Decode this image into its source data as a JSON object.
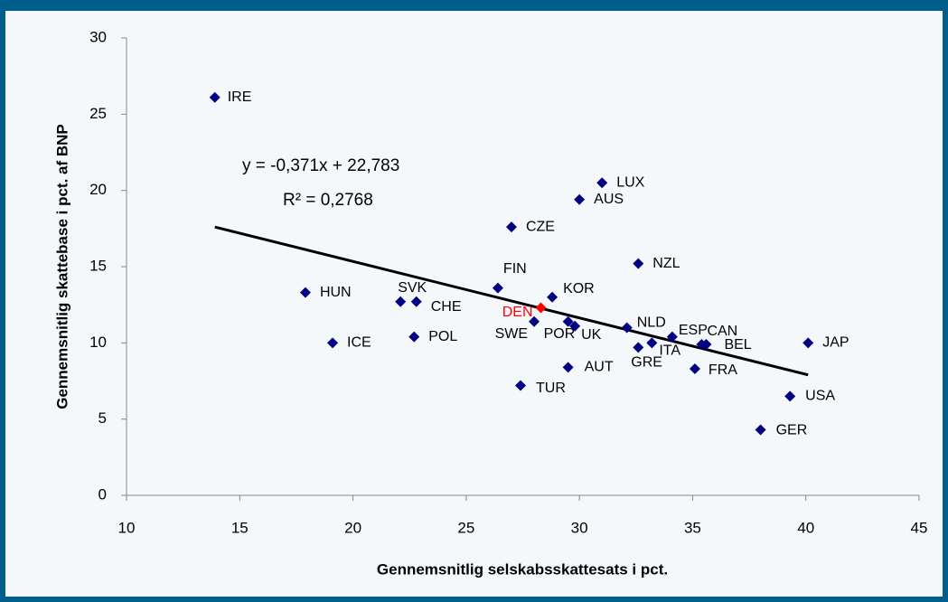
{
  "chart_data": {
    "type": "scatter",
    "xlabel": "Gennemsnitlig selskabsskattesats i pct.",
    "ylabel": "Gennemsnitlig skattebase i pct. af BNP",
    "xlim": [
      10,
      45
    ],
    "xticks": [
      10,
      15,
      20,
      25,
      30,
      35,
      40,
      45
    ],
    "ylim": [
      0,
      30
    ],
    "yticks": [
      0,
      5,
      10,
      15,
      20,
      25,
      30
    ],
    "labels": [
      "IRE",
      "HUN",
      "ICE",
      "SVK",
      "CHE",
      "POL",
      "CZE",
      "FIN",
      "KOR",
      "DEN",
      "SWE",
      "POR",
      "UK",
      "LUX",
      "AUS",
      "NZL",
      "NLD",
      "ESP",
      "ITA",
      "GRE",
      "CAN",
      "BEL",
      "AUT",
      "TUR",
      "FRA",
      "JAP",
      "USA",
      "GER"
    ],
    "x": [
      13.9,
      17.9,
      19.1,
      22.1,
      22.8,
      22.7,
      27.0,
      26.4,
      28.8,
      28.3,
      28.0,
      29.5,
      29.8,
      31.0,
      30.0,
      32.6,
      32.1,
      34.1,
      33.2,
      32.6,
      35.4,
      35.6,
      29.5,
      27.4,
      35.1,
      40.1,
      39.3,
      38.0
    ],
    "values": [
      26.1,
      13.3,
      10.0,
      12.7,
      12.7,
      10.4,
      17.6,
      13.6,
      13.0,
      12.3,
      11.4,
      11.4,
      11.1,
      20.5,
      19.4,
      15.2,
      11.0,
      10.4,
      10.0,
      9.7,
      9.9,
      9.9,
      8.4,
      7.2,
      8.3,
      10.0,
      6.5,
      4.3
    ],
    "color": "#000080",
    "highlight_color": "#ff0000",
    "highlight": [
      9
    ],
    "trendline": {
      "equation": "y = -0,371x + 22,783",
      "r_squared": "R² = 0,2768",
      "color": "#000000",
      "x": [
        13.9,
        40.1
      ],
      "y": [
        17.6,
        7.9
      ]
    }
  }
}
